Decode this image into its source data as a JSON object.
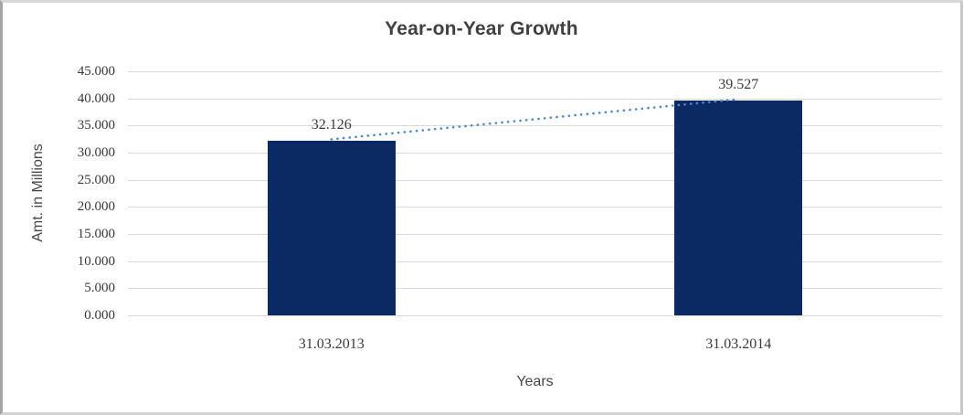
{
  "chart_data": {
    "type": "bar",
    "title": "Year-on-Year Growth",
    "xlabel": "Years",
    "ylabel": "Amt. in Millions",
    "categories": [
      "31.03.2013",
      "31.03.2014"
    ],
    "values": [
      32.126,
      39.527
    ],
    "data_labels": [
      "32.126",
      "39.527"
    ],
    "ylim": [
      0,
      45
    ],
    "ytick_step": 5,
    "ytick_labels": [
      "0.000",
      "5.000",
      "10.000",
      "15.000",
      "20.000",
      "25.000",
      "30.000",
      "35.000",
      "40.000",
      "45.000"
    ],
    "grid": true,
    "legend": false,
    "bar_color": "#0b2a63",
    "gridline_color": "#d9d9d9",
    "tick_text_color": "#3a3a3a",
    "title_color": "#404040",
    "trendline": {
      "type": "linear",
      "style": "round-dot",
      "color": "#4f86c6"
    }
  }
}
